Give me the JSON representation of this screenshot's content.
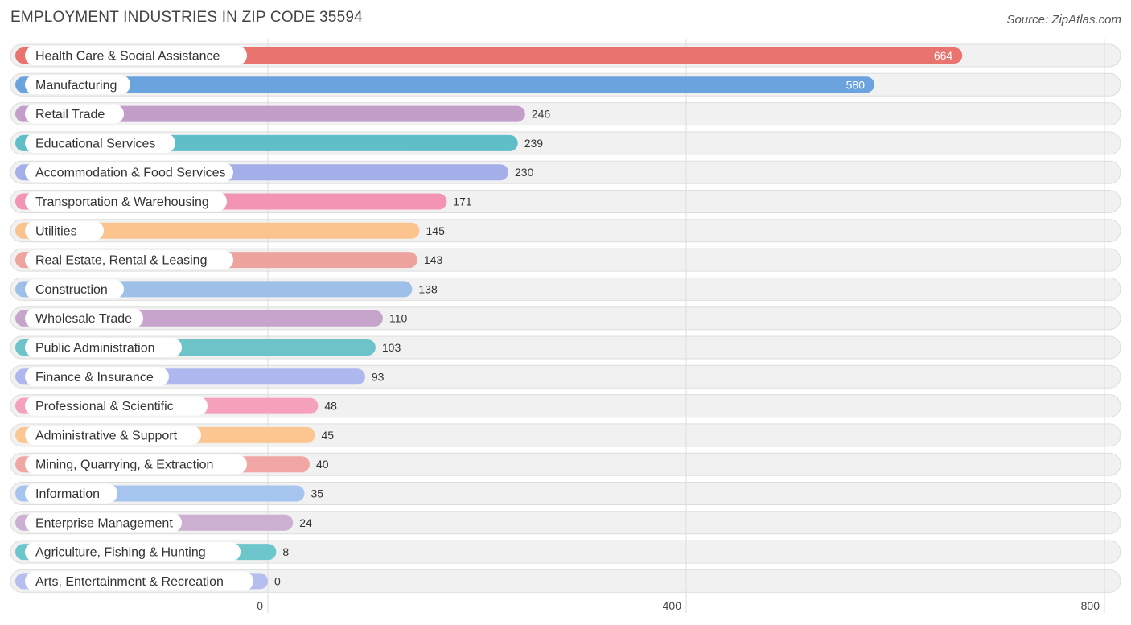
{
  "chart_data": {
    "type": "bar",
    "orientation": "horizontal",
    "title": "EMPLOYMENT INDUSTRIES IN ZIP CODE 35594",
    "source": "Source: ZipAtlas.com",
    "xlim": [
      0,
      800
    ],
    "xticks": [
      0,
      400,
      800
    ],
    "grid": true,
    "categories": [
      "Health Care & Social Assistance",
      "Manufacturing",
      "Retail Trade",
      "Educational Services",
      "Accommodation & Food Services",
      "Transportation & Warehousing",
      "Utilities",
      "Real Estate, Rental & Leasing",
      "Construction",
      "Wholesale Trade",
      "Public Administration",
      "Finance & Insurance",
      "Professional & Scientific",
      "Administrative & Support",
      "Mining, Quarrying, & Extraction",
      "Information",
      "Enterprise Management",
      "Agriculture, Fishing & Hunting",
      "Arts, Entertainment & Recreation"
    ],
    "values": [
      664,
      580,
      246,
      239,
      230,
      171,
      145,
      143,
      138,
      110,
      103,
      93,
      48,
      45,
      40,
      35,
      24,
      8,
      0
    ],
    "colors": [
      "#e8736f",
      "#6aa3de",
      "#c39ec9",
      "#5fbec8",
      "#a4aee8",
      "#f494b4",
      "#fbc48e",
      "#eda39e",
      "#9dbfe8",
      "#c6a4cb",
      "#6cc4c8",
      "#afb8ee",
      "#f6a1bc",
      "#fbc690",
      "#f0a6a3",
      "#a6c5ee",
      "#cbb0d2",
      "#6cc6cc",
      "#b6bef0"
    ]
  }
}
